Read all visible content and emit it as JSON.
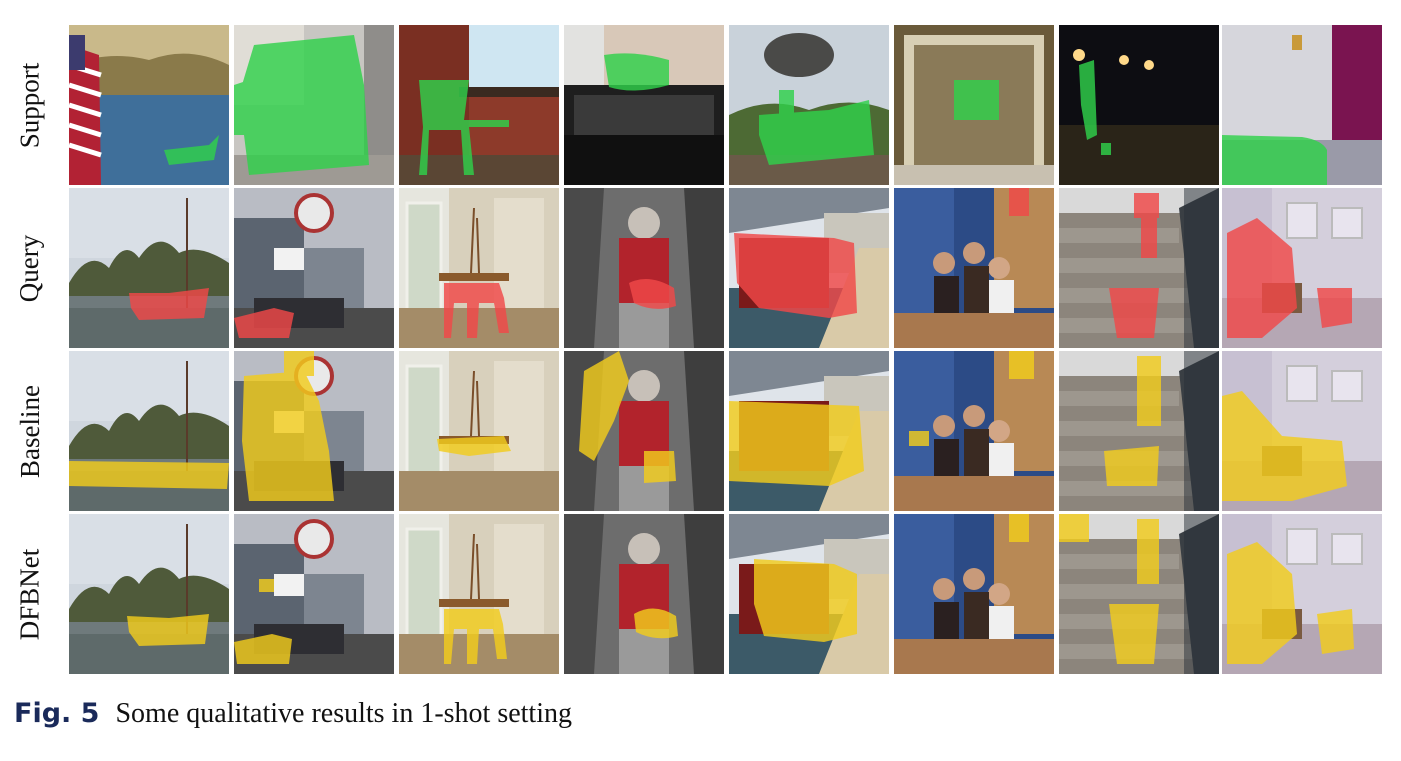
{
  "figure": {
    "rows": [
      {
        "label": "Support",
        "mask_color": "#2fd14a"
      },
      {
        "label": "Query",
        "mask_color": "#f04848"
      },
      {
        "label": "Baseline",
        "mask_color": "#f2cc1c"
      },
      {
        "label": "DFBNet",
        "mask_color": "#f2cc1c"
      }
    ],
    "columns": [
      {
        "scene": "boat on lake",
        "support_scene": "lake with flag and boat"
      },
      {
        "scene": "street with trucks and sign",
        "support_scene": "car in garage"
      },
      {
        "scene": "dining room with chairs",
        "support_scene": "chair by window"
      },
      {
        "scene": "person with cat in armchair",
        "support_scene": "cat on chair"
      },
      {
        "scene": "train at platform",
        "support_scene": "steam train"
      },
      {
        "scene": "people at table",
        "support_scene": "tv in shelf"
      },
      {
        "scene": "potted plants on steps",
        "support_scene": "potted plant at night"
      },
      {
        "scene": "sofa in room",
        "support_scene": "sofa by curtain"
      }
    ]
  },
  "caption": {
    "label": "Fig. 5",
    "text": "Some qualitative results in 1-shot setting"
  }
}
